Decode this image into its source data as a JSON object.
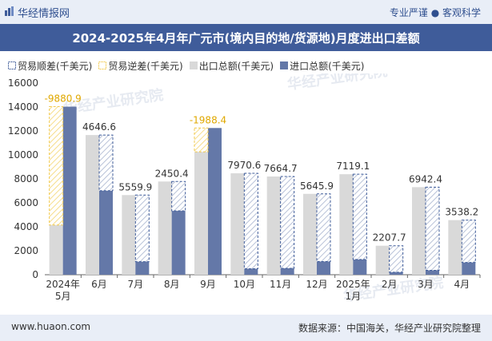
{
  "header": {
    "brand": "华经情报网",
    "tagline": "专业严谨 ● 客观科学"
  },
  "title": "2024-2025年4月年广元市(境内目的地/货源地)月度进出口差额",
  "legend": [
    {
      "label": "贸易顺差(千美元)",
      "kind": "surplus"
    },
    {
      "label": "贸易逆差(千美元)",
      "kind": "deficit"
    },
    {
      "label": "出口总额(千美元)",
      "kind": "export"
    },
    {
      "label": "进口总额(千美元)",
      "kind": "import"
    }
  ],
  "footer": {
    "left": "www.huaon.com",
    "right": "数据来源：中国海关，华经产业研究院整理"
  },
  "watermarks": [
    "华经产业研究院",
    "www.huaon.com"
  ],
  "chart_data": {
    "type": "bar",
    "categories": [
      [
        "2024年",
        "5月"
      ],
      [
        "6月"
      ],
      [
        "7月"
      ],
      [
        "8月"
      ],
      [
        "9月"
      ],
      [
        "10月"
      ],
      [
        "11月"
      ],
      [
        "12月"
      ],
      [
        "2025年",
        "1月"
      ],
      [
        "2月"
      ],
      [
        "3月"
      ],
      [
        "4月"
      ]
    ],
    "series": [
      {
        "name": "出口总额(千美元)",
        "values": [
          4150,
          11660,
          6650,
          7780,
          10260,
          8470,
          8200,
          6750,
          8390,
          2420,
          7310,
          4560
        ]
      },
      {
        "name": "进口总额(千美元)",
        "values": [
          14030,
          7013,
          1090,
          5330,
          12248,
          499,
          535,
          1104,
          1271,
          212,
          368,
          1022
        ]
      }
    ],
    "balance": [
      {
        "label": "-9880.9",
        "value": -9880.9
      },
      {
        "label": "4646.6",
        "value": 4646.6
      },
      {
        "label": "5559.9",
        "value": 5559.9
      },
      {
        "label": "2450.4",
        "value": 2450.4
      },
      {
        "label": "-1988.4",
        "value": -1988.4
      },
      {
        "label": "7970.6",
        "value": 7970.6
      },
      {
        "label": "7664.7",
        "value": 7664.7
      },
      {
        "label": "5645.9",
        "value": 5645.9
      },
      {
        "label": "7119.1",
        "value": 7119.1
      },
      {
        "label": "2207.7",
        "value": 2207.7
      },
      {
        "label": "6942.4",
        "value": 6942.4
      },
      {
        "label": "3538.2",
        "value": 3538.2
      }
    ],
    "ylim": [
      0,
      16000
    ],
    "yticks": [
      0,
      2000,
      4000,
      6000,
      8000,
      10000,
      12000,
      14000,
      16000
    ],
    "colors": {
      "export": "#d9d9d9",
      "import": "#6478a8",
      "surplus_stroke": "#3f5c9a",
      "deficit_stroke": "#f2c94c",
      "deficit_label": "#e0a800",
      "surplus_label": "#333333"
    },
    "grid": false,
    "legend_position": "top"
  }
}
